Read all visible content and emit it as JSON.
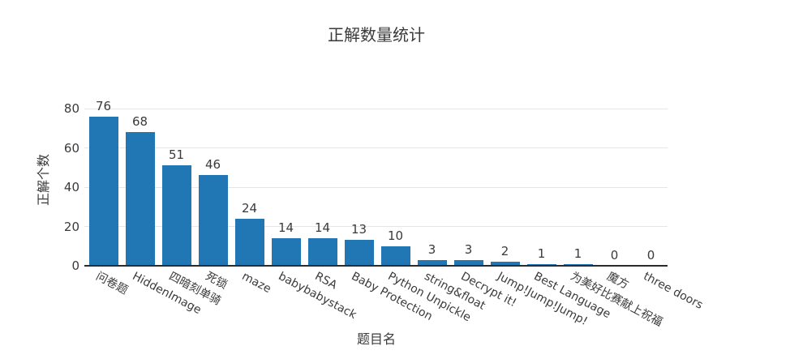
{
  "chart": {
    "title": "正解数量统计",
    "ylabel": "正解个数",
    "xlabel": "题目名"
  },
  "chart_data": {
    "type": "bar",
    "title": "正解数量统计",
    "xlabel": "题目名",
    "ylabel": "正解个数",
    "categories": [
      "问卷题",
      "HiddenImage",
      "四暗刻单骑",
      "死锁",
      "maze",
      "babybabystack",
      "RSA",
      "Baby Protection",
      "Python Unpickle",
      "string&float",
      "Decrypt it!",
      "Jump!Jump!Jump!",
      "Best Language",
      "为美好比赛献上祝福",
      "魔方",
      "three doors"
    ],
    "values": [
      76,
      68,
      51,
      46,
      24,
      14,
      14,
      13,
      10,
      3,
      3,
      2,
      1,
      1,
      0,
      0
    ],
    "yticks": [
      0,
      20,
      40,
      60,
      80
    ],
    "ylim": [
      0,
      80
    ],
    "value_labels": true,
    "grid": true,
    "legend": false,
    "tick_rotation_deg": 28,
    "colors": {
      "bar": "#2177b4",
      "gridline": "#e6e6e6",
      "axis_line": "#2b2b2b",
      "text": "#3a3a3a"
    }
  }
}
